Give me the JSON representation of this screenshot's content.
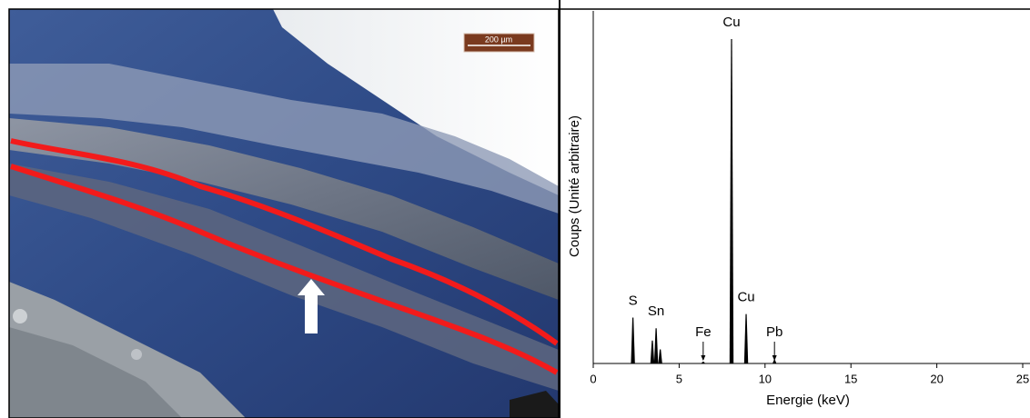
{
  "micrograph": {
    "scale_bar": "200 µm"
  },
  "chart_data": {
    "type": "spectrum",
    "xlabel": "Energie (keV)",
    "ylabel": "Coups (Unité arbitraire)",
    "x": [
      2.31,
      3.44,
      3.66,
      3.9,
      6.4,
      8.05,
      8.9,
      10.55
    ],
    "values": [
      13,
      6.5,
      10,
      4,
      0.5,
      92,
      14,
      1
    ],
    "color": "#000000",
    "xlim": [
      0,
      25
    ],
    "xticks": [
      0,
      5,
      10,
      15,
      20,
      25
    ],
    "ylim": [
      0,
      100
    ],
    "annotations": [
      {
        "text": "S",
        "x": 2.31
      },
      {
        "text": "Sn",
        "x": 3.66
      },
      {
        "text": "Fe",
        "x": 6.4
      },
      {
        "text": "Cu",
        "x": 8.05
      },
      {
        "text": "Cu",
        "x": 8.9
      },
      {
        "text": "Pb",
        "x": 10.55
      }
    ]
  }
}
